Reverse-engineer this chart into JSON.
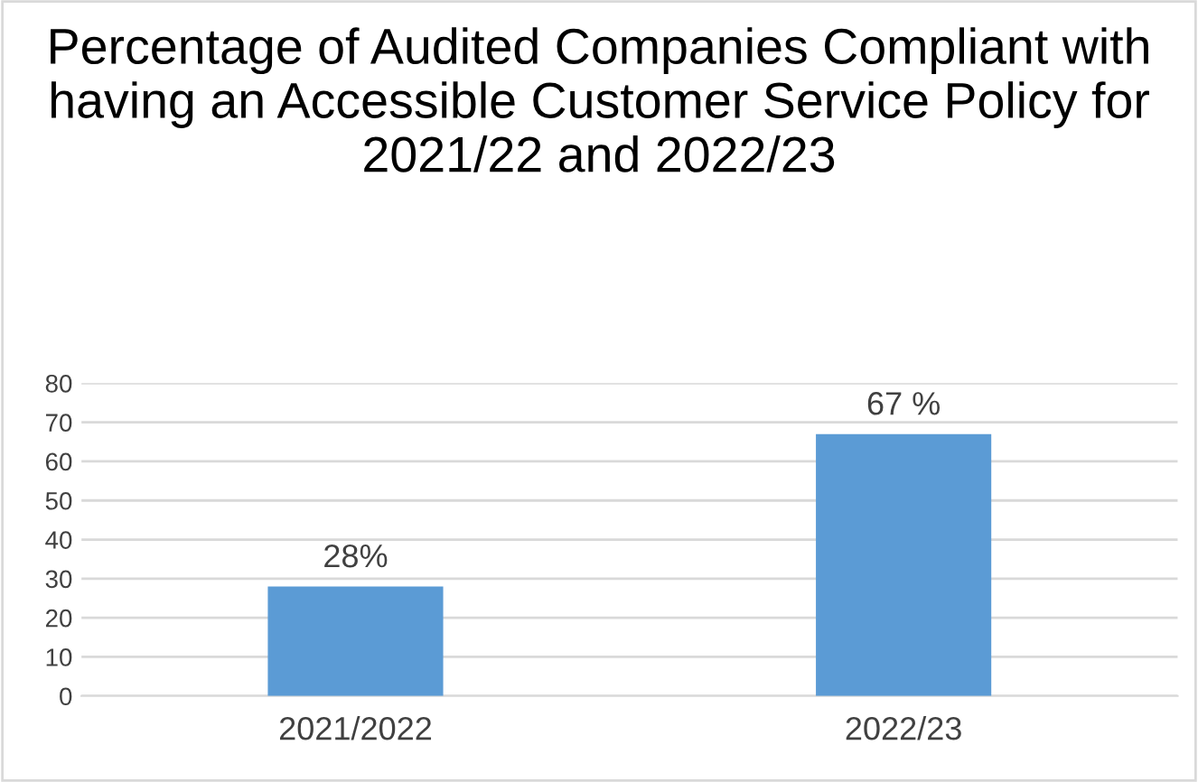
{
  "chart_data": {
    "type": "bar",
    "title": "Percentage of Audited Companies Compliant with having an Accessible Customer Service Policy for 2021/22 and 2022/23",
    "categories": [
      "2021/2022",
      "2022/23"
    ],
    "values": [
      28,
      67
    ],
    "value_labels": [
      "28%",
      "67 %"
    ],
    "color": "#5b9bd5",
    "ylim": [
      0,
      80
    ],
    "yticks": [
      0,
      10,
      20,
      30,
      40,
      50,
      60,
      70,
      80
    ],
    "grid": "y",
    "legend": false
  }
}
